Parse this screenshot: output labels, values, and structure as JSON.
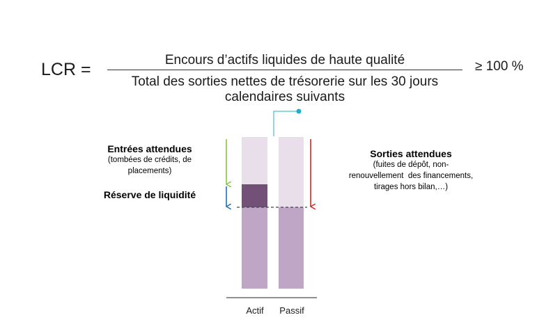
{
  "formula": {
    "lhs": "LCR =",
    "numerator": "Encours d’actifs liquides de haute qualité",
    "denominator_line1": "Total des sorties nettes de trésorerie sur les 30 jours",
    "denominator_line2": "calendaires suivants",
    "threshold": "≥ 100 %"
  },
  "inflows": {
    "title": "Entrées attendues",
    "detail_line1": "(tombées de crédits, de",
    "detail_line2": "placements)"
  },
  "reserve": {
    "label": "Réserve de liquidité"
  },
  "outflows": {
    "title": "Sorties attendues",
    "detail_line1": "(fuites de dépôt, non-",
    "detail_line2": "renouvellement  des financements,",
    "detail_line3": "tirages hors bilan,…)"
  },
  "columns": {
    "actif": "Actif",
    "passif": "Passif"
  },
  "colors": {
    "light_bar": "#e9dfea",
    "mid_bar": "#bfa5c6",
    "dark_bar": "#735077",
    "connector": "#1ab0c8",
    "arrow_green": "#8bc34a",
    "arrow_blue": "#1f6fb8",
    "arrow_red": "#e02020"
  }
}
